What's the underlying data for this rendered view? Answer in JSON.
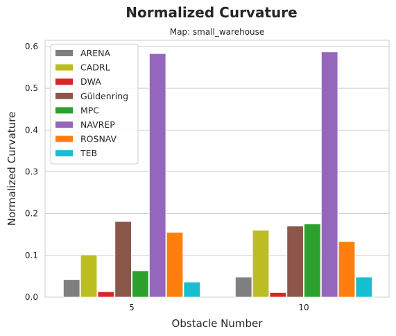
{
  "chart_data": {
    "type": "bar",
    "title": "Normalized Curvature",
    "subtitle": "Map: small_warehouse",
    "xlabel": "Obstacle Number",
    "ylabel": "Normalized Curvature",
    "categories": [
      "5",
      "10"
    ],
    "ylim": [
      0,
      0.6
    ],
    "yticks": [
      "0.0",
      "0.1",
      "0.2",
      "0.3",
      "0.4",
      "0.5",
      "0.6"
    ],
    "grid": true,
    "legend_position": "top-left",
    "series": [
      {
        "name": "ARENA",
        "color": "#7f7f7f",
        "values": [
          0.042,
          0.048
        ]
      },
      {
        "name": "CADRL",
        "color": "#bcbd22",
        "values": [
          0.101,
          0.16
        ]
      },
      {
        "name": "DWA",
        "color": "#d62728",
        "values": [
          0.013,
          0.011
        ]
      },
      {
        "name": "Güldenring",
        "color": "#8c564b",
        "values": [
          0.181,
          0.17
        ]
      },
      {
        "name": "MPC",
        "color": "#2ca02c",
        "values": [
          0.063,
          0.175
        ]
      },
      {
        "name": "NAVREP",
        "color": "#9467bd",
        "values": [
          0.583,
          0.587
        ]
      },
      {
        "name": "ROSNAV",
        "color": "#ff7f0e",
        "values": [
          0.155,
          0.133
        ]
      },
      {
        "name": "TEB",
        "color": "#17becf",
        "values": [
          0.036,
          0.048
        ]
      }
    ]
  }
}
